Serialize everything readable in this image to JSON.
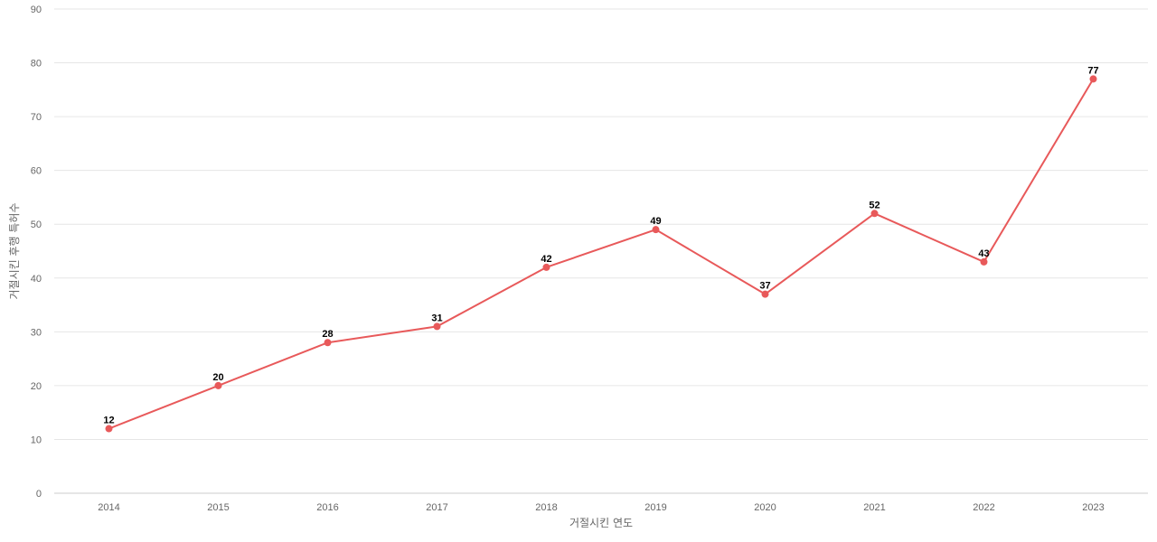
{
  "chart_data": {
    "type": "line",
    "title": "",
    "xlabel": "거절시킨 연도",
    "ylabel": "거절시킨 후행 특허수",
    "categories": [
      "2014",
      "2015",
      "2016",
      "2017",
      "2018",
      "2019",
      "2020",
      "2021",
      "2022",
      "2023"
    ],
    "series": [
      {
        "values": [
          12,
          20,
          28,
          31,
          42,
          49,
          37,
          52,
          43,
          77
        ],
        "color": "#e8595a"
      }
    ],
    "ylim": [
      0,
      90
    ],
    "yticks": [
      0,
      10,
      20,
      30,
      40,
      50,
      60,
      70,
      80,
      90
    ],
    "grid": true,
    "legend": "none",
    "data_labels": true
  }
}
